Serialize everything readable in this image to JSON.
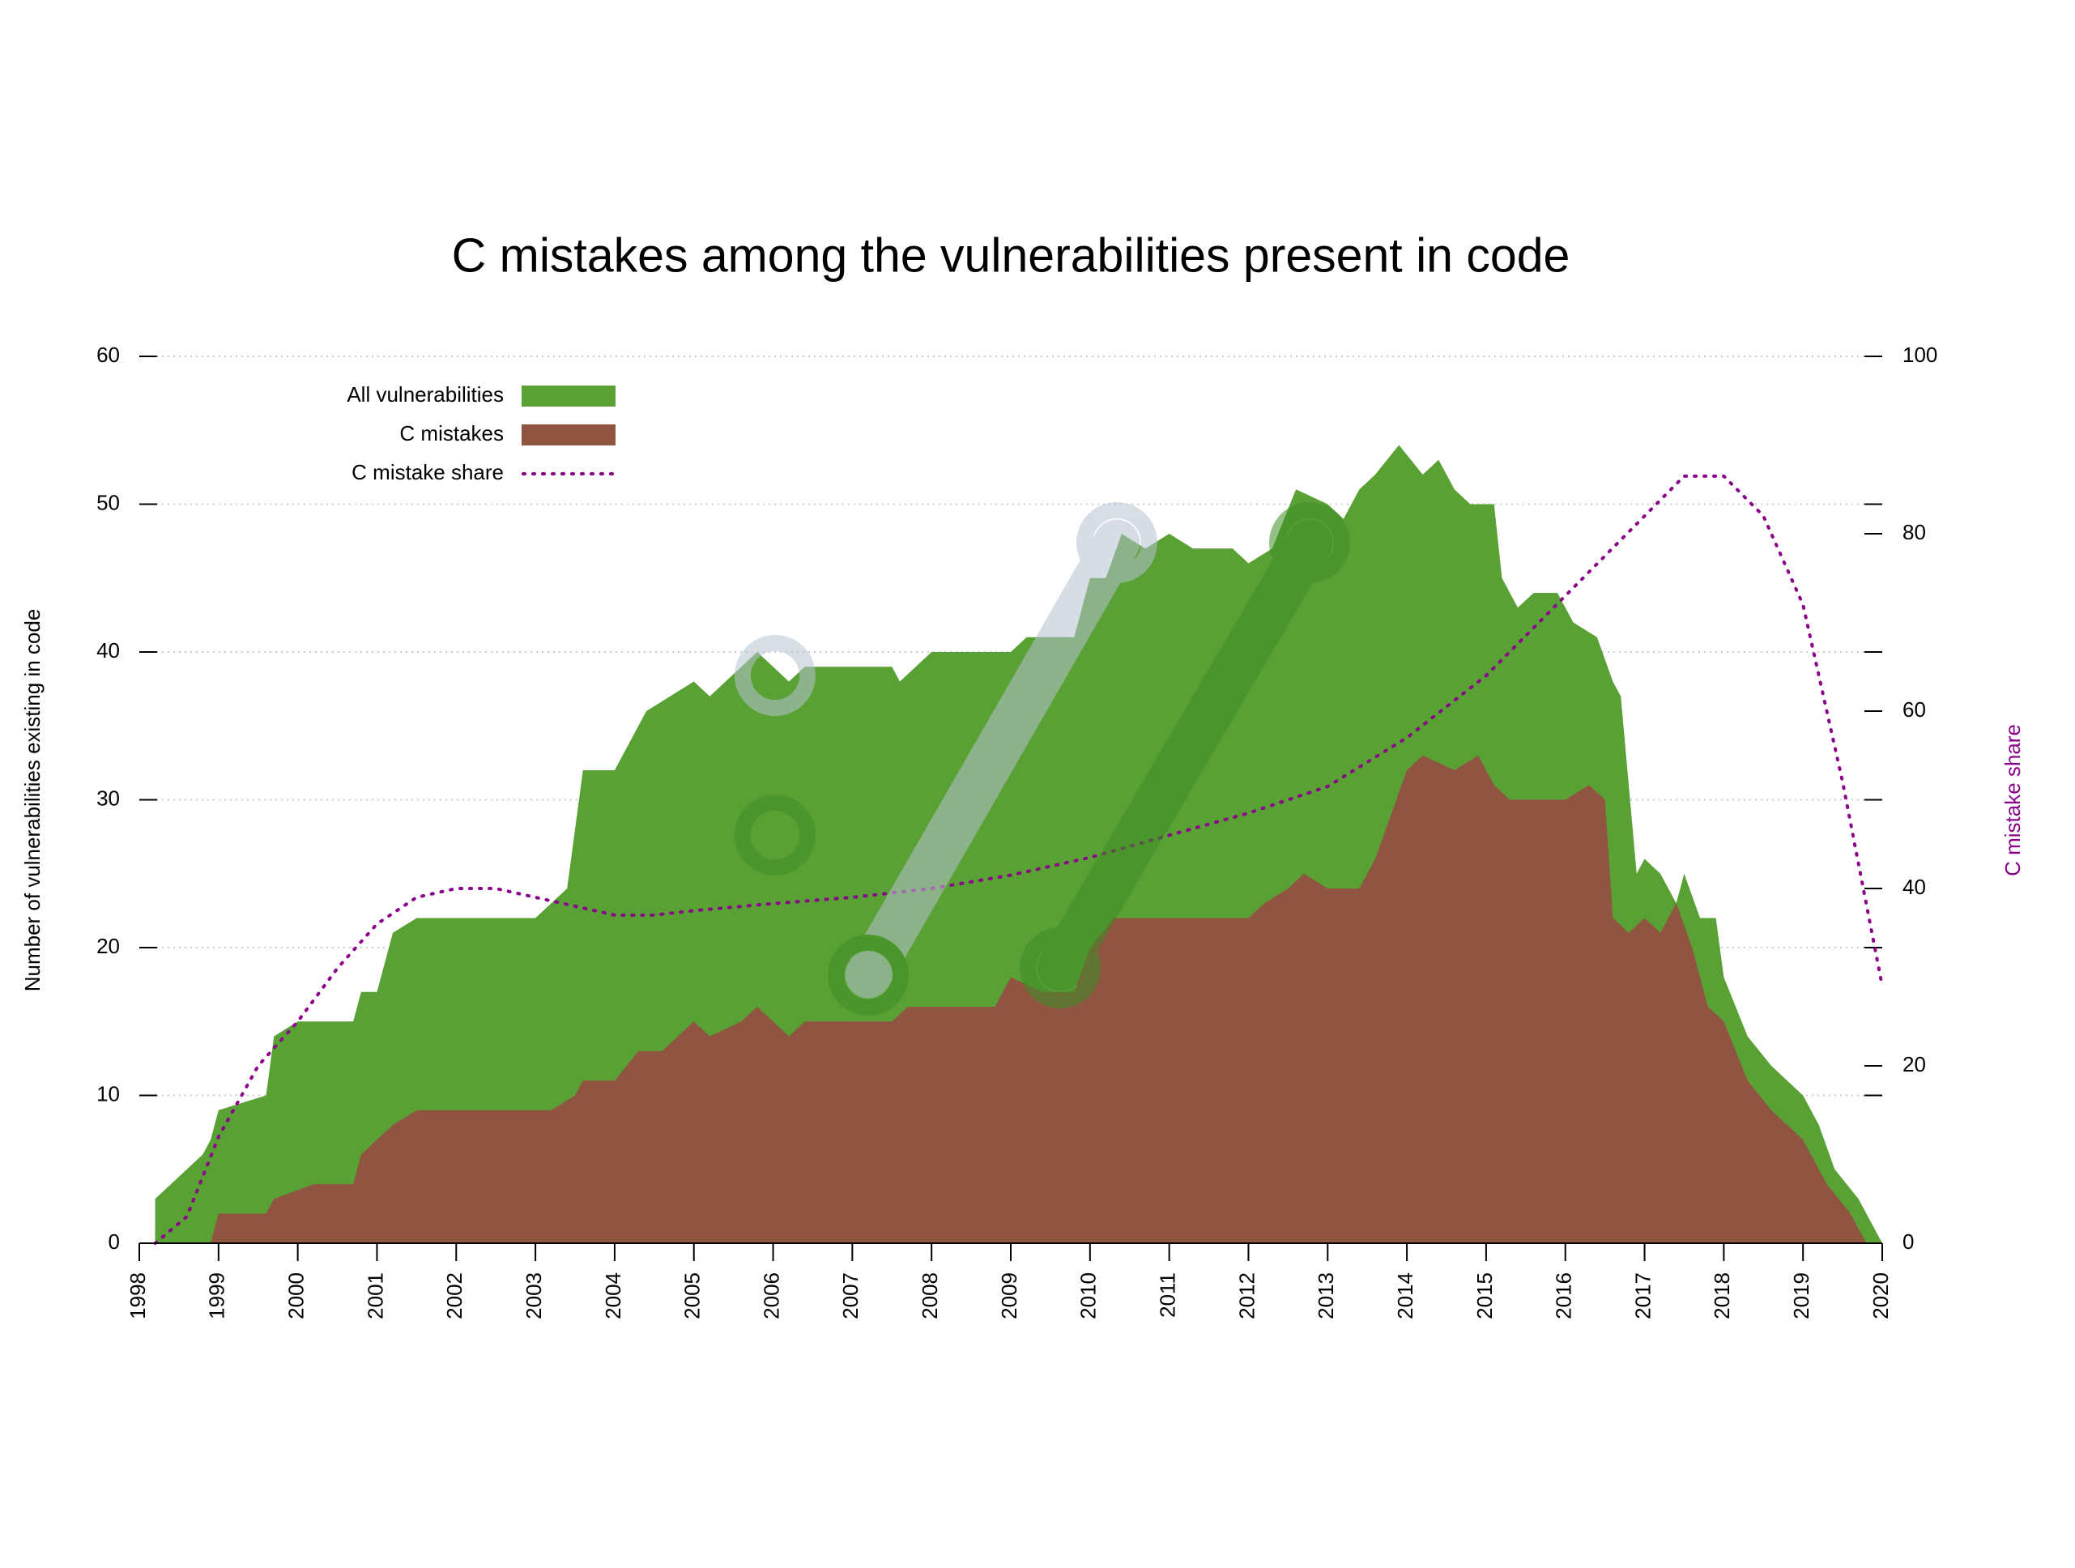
{
  "chart_data": {
    "type": "area",
    "title": "C mistakes among the vulnerabilities present in code",
    "y_label": "Number of vulnerabilities existing in code",
    "y2_label": "C mistake share",
    "xlim": [
      1998,
      2020
    ],
    "xticks": [
      1998,
      1999,
      2000,
      2001,
      2002,
      2003,
      2004,
      2005,
      2006,
      2007,
      2008,
      2009,
      2010,
      2011,
      2012,
      2013,
      2014,
      2015,
      2016,
      2017,
      2018,
      2019,
      2020
    ],
    "ylim": [
      0,
      60
    ],
    "yticks": [
      0,
      10,
      20,
      30,
      40,
      50,
      60
    ],
    "y2lim": [
      0,
      100
    ],
    "y2ticks": [
      0,
      20,
      40,
      60,
      80,
      100
    ],
    "grid": true,
    "legend": "top-left",
    "series": [
      {
        "name": "All vulnerabilities",
        "color": "#59a035",
        "style": "area",
        "x": [
          1998.2,
          1998.4,
          1998.6,
          1998.8,
          1998.9,
          1999.0,
          1999.6,
          1999.7,
          2000.0,
          2000.7,
          2000.8,
          2001.0,
          2001.2,
          2001.5,
          2003.0,
          2003.2,
          2003.4,
          2003.6,
          2004.0,
          2004.2,
          2004.4,
          2004.7,
          2005.0,
          2005.2,
          2005.4,
          2005.8,
          2006.0,
          2006.2,
          2006.4,
          2007.5,
          2007.6,
          2007.8,
          2008.0,
          2009.0,
          2009.2,
          2009.8,
          2010.0,
          2010.2,
          2010.4,
          2010.7,
          2011.0,
          2011.3,
          2011.8,
          2012.0,
          2012.3,
          2012.6,
          2013.0,
          2013.2,
          2013.4,
          2013.6,
          2013.9,
          2014.2,
          2014.4,
          2014.6,
          2014.8,
          2015.1,
          2015.2,
          2015.4,
          2015.6,
          2015.9,
          2016.1,
          2016.4,
          2016.6,
          2016.7,
          2016.9,
          2017.0,
          2017.2,
          2017.4,
          2017.5,
          2017.7,
          2017.9,
          2018.0,
          2018.3,
          2018.6,
          2019.0,
          2019.2,
          2019.4,
          2019.7,
          2019.8,
          2020.0
        ],
        "values": [
          3,
          4,
          5,
          6,
          7,
          9,
          10,
          14,
          15,
          15,
          17,
          17,
          21,
          22,
          22,
          23,
          24,
          32,
          32,
          34,
          36,
          37,
          38,
          37,
          38,
          40,
          39,
          38,
          39,
          39,
          38,
          39,
          40,
          40,
          41,
          41,
          45,
          45,
          48,
          47,
          48,
          47,
          47,
          46,
          47,
          51,
          50,
          49,
          51,
          52,
          54,
          52,
          53,
          51,
          50,
          50,
          45,
          43,
          44,
          44,
          42,
          41,
          38,
          37,
          25,
          26,
          25,
          23,
          25,
          22,
          22,
          18,
          14,
          12,
          10,
          8,
          5,
          3,
          2,
          0
        ]
      },
      {
        "name": "C mistakes",
        "color": "#8f5540",
        "style": "area",
        "x": [
          1998.9,
          1999.0,
          1999.6,
          1999.7,
          2000.2,
          2000.7,
          2000.8,
          2001.2,
          2001.5,
          2003.2,
          2003.5,
          2003.6,
          2004.0,
          2004.3,
          2004.6,
          2005.0,
          2005.2,
          2005.6,
          2005.8,
          2006.0,
          2006.2,
          2006.4,
          2007.5,
          2007.7,
          2008.8,
          2009.0,
          2009.4,
          2009.8,
          2010.0,
          2010.3,
          2012.0,
          2012.2,
          2012.5,
          2012.7,
          2013.0,
          2013.4,
          2013.6,
          2013.8,
          2014.0,
          2014.2,
          2014.6,
          2014.9,
          2015.1,
          2015.3,
          2016.0,
          2016.3,
          2016.5,
          2016.6,
          2016.8,
          2017.0,
          2017.2,
          2017.4,
          2017.6,
          2017.8,
          2018.0,
          2018.3,
          2018.6,
          2019.0,
          2019.3,
          2019.6,
          2019.7,
          2019.8
        ],
        "values": [
          0,
          2,
          2,
          3,
          4,
          4,
          6,
          8,
          9,
          9,
          10,
          11,
          11,
          13,
          13,
          15,
          14,
          15,
          16,
          15,
          14,
          15,
          15,
          16,
          16,
          18,
          17,
          17,
          20,
          22,
          22,
          23,
          24,
          25,
          24,
          24,
          26,
          29,
          32,
          33,
          32,
          33,
          31,
          30,
          30,
          31,
          30,
          22,
          21,
          22,
          21,
          23,
          20,
          16,
          15,
          11,
          9,
          7,
          4,
          2,
          1,
          0
        ]
      },
      {
        "name": "C mistake share",
        "color": "#8b008b",
        "style": "dotted",
        "axis": "y2",
        "x": [
          1998.2,
          1998.6,
          1999.0,
          1999.5,
          2000.0,
          2000.5,
          2001.0,
          2001.5,
          2002.0,
          2002.5,
          2003.0,
          2003.5,
          2004.0,
          2004.5,
          2005.0,
          2006.0,
          2007.0,
          2008.0,
          2009.0,
          2010.0,
          2011.0,
          2012.0,
          2013.0,
          2014.0,
          2015.0,
          2016.0,
          2017.0,
          2017.5,
          2018.0,
          2018.5,
          2019.0,
          2019.5,
          2020.0
        ],
        "values": [
          0,
          3,
          12,
          20,
          25,
          31,
          36,
          39,
          40,
          40,
          39,
          38,
          37,
          37,
          37.5,
          38.3,
          39,
          40,
          41.5,
          43.5,
          46,
          48.5,
          51.5,
          57,
          64,
          73,
          82,
          86.5,
          86.5,
          82,
          72,
          52,
          29
        ]
      }
    ]
  }
}
